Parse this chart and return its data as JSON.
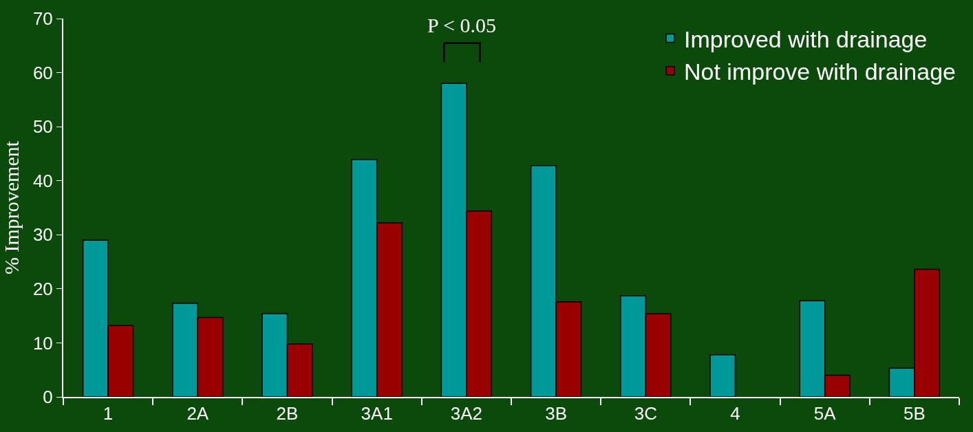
{
  "chart_data": {
    "type": "bar",
    "ylabel": "% Improvement",
    "categories": [
      "1",
      "2A",
      "2B",
      "3A1",
      "3A2",
      "3B",
      "3C",
      "4",
      "5A",
      "5B"
    ],
    "series": [
      {
        "name": "Improved with drainage",
        "color": "#009999",
        "values": [
          29,
          17.3,
          15.4,
          43.9,
          58,
          42.8,
          18.7,
          7.8,
          17.8,
          5.3
        ]
      },
      {
        "name": "Not improve with drainage",
        "color": "#990000",
        "values": [
          13.2,
          14.7,
          9.8,
          32.2,
          34.4,
          17.6,
          15.4,
          null,
          4,
          23.6
        ]
      }
    ],
    "ylim": [
      0,
      70
    ],
    "yticks": [
      0,
      10,
      20,
      30,
      40,
      50,
      60,
      70
    ],
    "grid": false,
    "legend": "top right",
    "annotations": [
      "P < 0.05"
    ]
  }
}
